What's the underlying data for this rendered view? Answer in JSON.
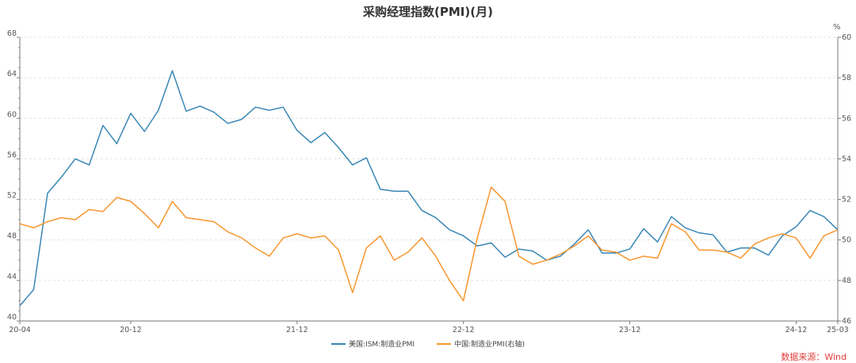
{
  "chart_data": {
    "type": "line",
    "title": "采购经理指数(PMI)(月)",
    "right_unit": "%",
    "x": [
      "20-04",
      "20-05",
      "20-06",
      "20-07",
      "20-08",
      "20-09",
      "20-10",
      "20-11",
      "20-12",
      "21-01",
      "21-02",
      "21-03",
      "21-04",
      "21-05",
      "21-06",
      "21-07",
      "21-08",
      "21-09",
      "21-10",
      "21-11",
      "21-12",
      "22-01",
      "22-02",
      "22-03",
      "22-04",
      "22-05",
      "22-06",
      "22-07",
      "22-08",
      "22-09",
      "22-10",
      "22-11",
      "22-12",
      "23-01",
      "23-02",
      "23-03",
      "23-04",
      "23-05",
      "23-06",
      "23-07",
      "23-08",
      "23-09",
      "23-10",
      "23-11",
      "23-12",
      "24-01",
      "24-02",
      "24-03",
      "24-04",
      "24-05",
      "24-06",
      "24-07",
      "24-08",
      "24-09",
      "24-10",
      "24-11",
      "24-12",
      "25-01",
      "25-02",
      "25-03"
    ],
    "x_tick_labels": [
      "20-04",
      "20-12",
      "21-12",
      "22-12",
      "23-12",
      "24-12",
      "25-03"
    ],
    "left_axis": {
      "range": [
        40,
        68
      ],
      "ticks": [
        40,
        44,
        48,
        52,
        56,
        60,
        64,
        68
      ]
    },
    "right_axis": {
      "range": [
        46,
        60
      ],
      "ticks": [
        46,
        48,
        50,
        52,
        54,
        56,
        58,
        60
      ]
    },
    "grid": true,
    "legend_position": "bottom",
    "series": [
      {
        "name": "美国:ISM:制造业PMI",
        "axis": "left",
        "color": "#3a87b5",
        "values": [
          41.5,
          43.1,
          52.6,
          54.2,
          56.0,
          55.4,
          59.3,
          57.5,
          60.5,
          58.7,
          60.8,
          64.7,
          60.7,
          61.2,
          60.6,
          59.5,
          59.9,
          61.1,
          60.8,
          61.1,
          58.8,
          57.6,
          58.6,
          57.1,
          55.4,
          56.1,
          53.0,
          52.8,
          52.8,
          50.9,
          50.2,
          49.0,
          48.4,
          47.4,
          47.7,
          46.3,
          47.1,
          46.9,
          46.0,
          46.4,
          47.6,
          49.0,
          46.7,
          46.7,
          47.1,
          49.1,
          47.8,
          50.3,
          49.2,
          48.7,
          48.5,
          46.8,
          47.2,
          47.2,
          46.5,
          48.4,
          49.3,
          50.9,
          50.3,
          49.0
        ]
      },
      {
        "name": "中国:制造业PMI(右轴)",
        "axis": "right",
        "color": "#f7962f",
        "values": [
          50.8,
          50.6,
          50.9,
          51.1,
          51.0,
          51.5,
          51.4,
          52.1,
          51.9,
          51.3,
          50.6,
          51.9,
          51.1,
          51.0,
          50.9,
          50.4,
          50.1,
          49.6,
          49.2,
          50.1,
          50.3,
          50.1,
          50.2,
          49.5,
          47.4,
          49.6,
          50.2,
          49.0,
          49.4,
          50.1,
          49.2,
          48.0,
          47.0,
          50.1,
          52.6,
          51.9,
          49.2,
          48.8,
          49.0,
          49.3,
          49.7,
          50.2,
          49.5,
          49.4,
          49.0,
          49.2,
          49.1,
          50.8,
          50.4,
          49.5,
          49.5,
          49.4,
          49.1,
          49.8,
          50.1,
          50.3,
          50.1,
          49.1,
          50.2,
          50.5
        ]
      }
    ],
    "source": "数据来源：Wind"
  }
}
